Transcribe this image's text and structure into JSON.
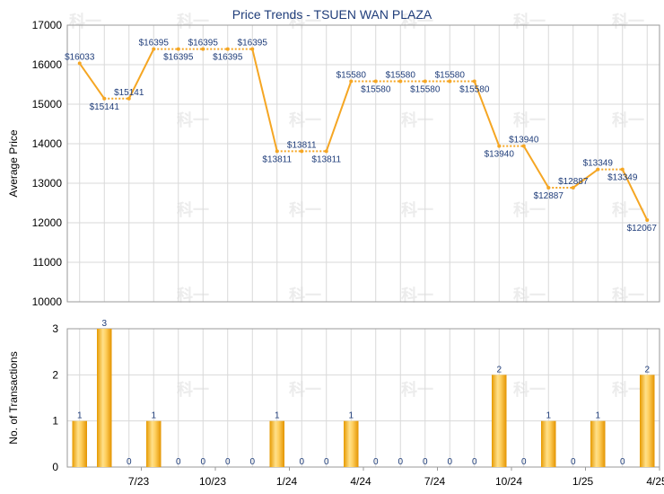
{
  "chart_data": [
    {
      "type": "line",
      "title": "Price Trends - TSUEN WAN PLAZA",
      "ylabel": "Average Price",
      "ylim": [
        10000,
        17000
      ],
      "yticks": [
        10000,
        11000,
        12000,
        13000,
        14000,
        15000,
        16000,
        17000
      ],
      "grid": true,
      "series": [
        {
          "color": "#f5a623",
          "values": [
            16033,
            15141,
            15141,
            16395,
            16395,
            16395,
            16395,
            16395,
            13811,
            13811,
            13811,
            15580,
            15580,
            15580,
            15580,
            15580,
            15580,
            13940,
            13940,
            12887,
            12887,
            13349,
            13349,
            12067
          ],
          "labels": [
            "$16033",
            "$15141",
            "$15141",
            "$16395",
            "$16395",
            "$16395",
            "$16395",
            "$16395",
            "$13811",
            "$13811",
            "$13811",
            "$15580",
            "$15580",
            "$15580",
            "$15580",
            "$15580",
            "$15580",
            "$13940",
            "$13940",
            "$12887",
            "$12887",
            "$13349",
            "$13349",
            "$12067"
          ]
        }
      ]
    },
    {
      "type": "bar",
      "ylabel": "No. of Transactions",
      "ylim": [
        0,
        3
      ],
      "yticks": [
        0,
        1,
        2,
        3
      ],
      "grid": true,
      "x_tick_labels": [
        "7/23",
        "10/23",
        "1/24",
        "4/24",
        "7/24",
        "10/24",
        "1/25",
        "4/25"
      ],
      "series": [
        {
          "color": "#f0a500",
          "values": [
            1,
            3,
            0,
            1,
            0,
            0,
            0,
            0,
            1,
            0,
            0,
            1,
            0,
            0,
            0,
            0,
            0,
            2,
            0,
            1,
            0,
            1,
            0,
            2
          ]
        }
      ]
    }
  ],
  "watermark": "科一"
}
